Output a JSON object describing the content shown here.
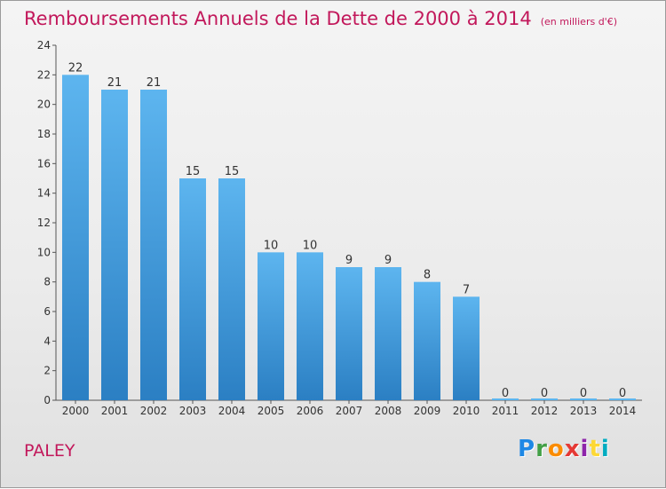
{
  "header": {
    "title": "Remboursements Annuels de la Dette de 2000 à 2014",
    "unit": "(en milliers d'€)"
  },
  "footer": {
    "place": "PALEY",
    "logo": [
      "P",
      "r",
      "o",
      "x",
      "i",
      "t",
      "i"
    ],
    "logo_colors": [
      "#1e88e5",
      "#43a047",
      "#fb8c00",
      "#e53935",
      "#8e24aa",
      "#fdd835",
      "#00acc1"
    ]
  },
  "colors": {
    "bar_top": "#5db5ef",
    "bar_bottom": "#2b7fc3",
    "title": "#c2185b"
  },
  "chart_data": {
    "type": "bar",
    "title": "Remboursements Annuels de la Dette de 2000 à 2014",
    "subtitle": "(en milliers d'€)",
    "categories": [
      "2000",
      "2001",
      "2002",
      "2003",
      "2004",
      "2005",
      "2006",
      "2007",
      "2008",
      "2009",
      "2010",
      "2011",
      "2012",
      "2013",
      "2014"
    ],
    "values": [
      22,
      21,
      21,
      15,
      15,
      10,
      10,
      9,
      9,
      8,
      7,
      0,
      0,
      0,
      0
    ],
    "labels": [
      "22",
      "21",
      "21",
      "15",
      "15",
      "10",
      "10",
      "9",
      "9",
      "8",
      "7",
      "0",
      "0",
      "0",
      "0"
    ],
    "yticks": [
      "0",
      "2",
      "4",
      "6",
      "8",
      "10",
      "12",
      "14",
      "16",
      "18",
      "20",
      "22",
      "24"
    ],
    "ylim": [
      0,
      24
    ],
    "grid": false,
    "legend": "none"
  }
}
